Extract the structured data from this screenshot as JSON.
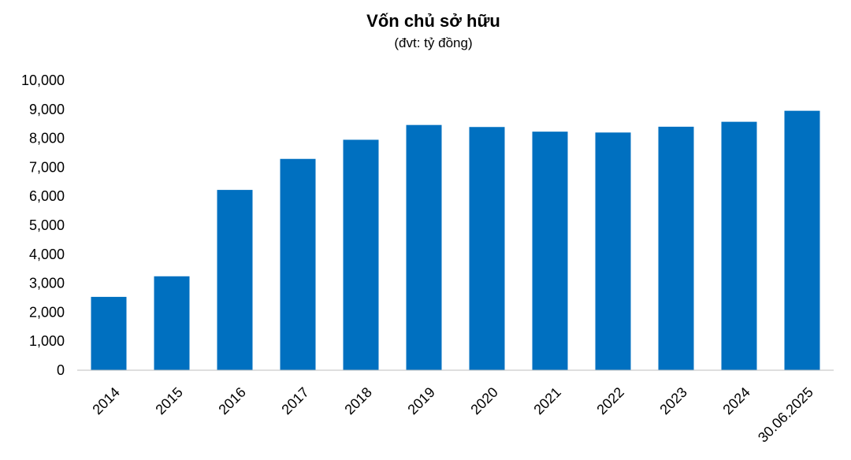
{
  "chart_data": {
    "type": "bar",
    "title": "Vốn chủ sở hữu",
    "subtitle": "(đvt: tỷ đồng)",
    "categories": [
      "2014",
      "2015",
      "2016",
      "2017",
      "2018",
      "2019",
      "2020",
      "2021",
      "2022",
      "2023",
      "2024",
      "30.06.2025"
    ],
    "values": [
      2530,
      3240,
      6220,
      7290,
      7950,
      8460,
      8390,
      8230,
      8200,
      8400,
      8570,
      8950
    ],
    "ylim": [
      0,
      10000
    ],
    "yticks": [
      0,
      1000,
      2000,
      3000,
      4000,
      5000,
      6000,
      7000,
      8000,
      9000,
      10000
    ],
    "ytick_labels": [
      "0",
      "1,000",
      "2,000",
      "3,000",
      "4,000",
      "5,000",
      "6,000",
      "7,000",
      "8,000",
      "9,000",
      "10,000"
    ],
    "bar_color": "#0070C0",
    "grid": false,
    "legend": false
  }
}
